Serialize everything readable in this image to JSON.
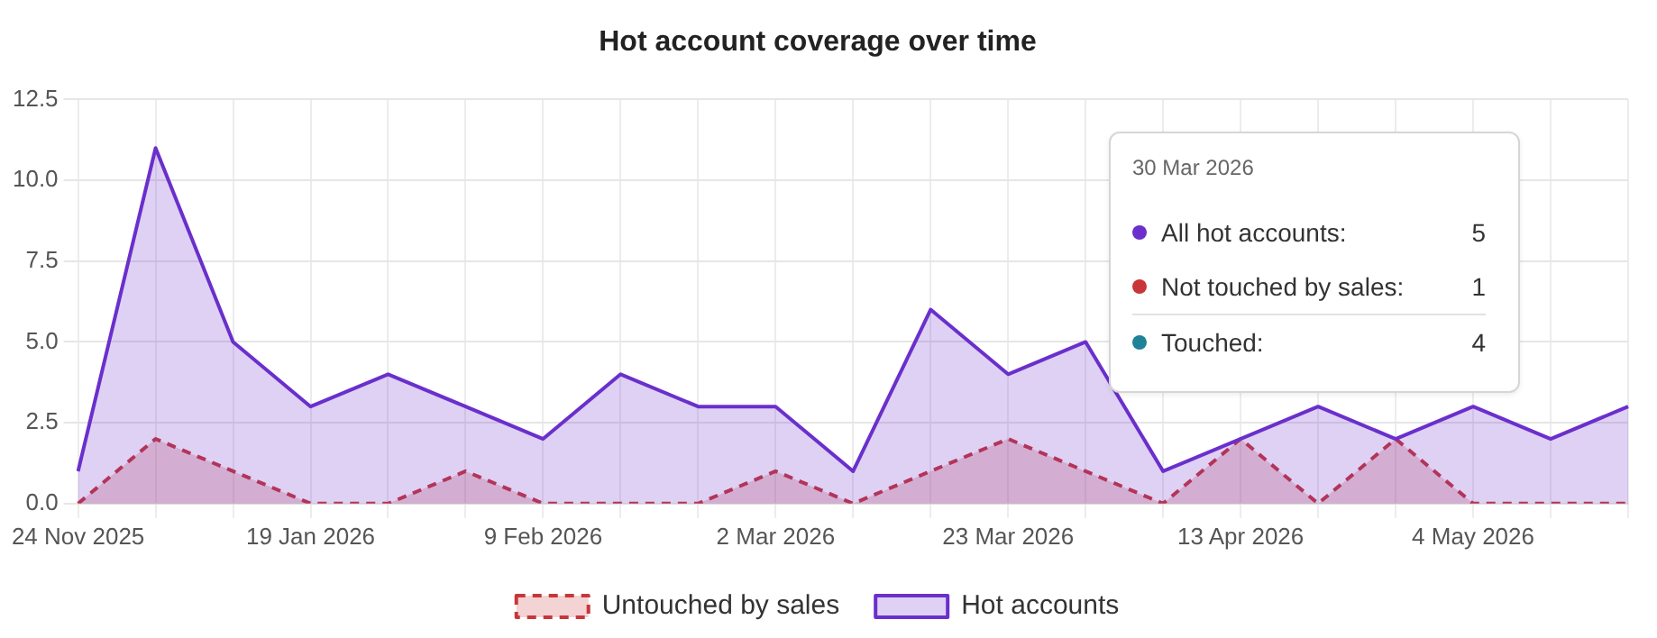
{
  "chart_data": {
    "type": "area",
    "title": "Hot account coverage over time",
    "categories": [
      "24 Nov 2025",
      null,
      null,
      "19 Jan 2026",
      null,
      null,
      "9 Feb 2026",
      null,
      null,
      "2 Mar 2026",
      null,
      null,
      "23 Mar 2026",
      null,
      null,
      "13 Apr 2026",
      null,
      null,
      "4 May 2026",
      null,
      null
    ],
    "series": [
      {
        "name": "Untouched by sales",
        "color": "#c8363a",
        "line_style": "dashed",
        "values": [
          0,
          2,
          1,
          0,
          0,
          1,
          0,
          0,
          0,
          1,
          0,
          1,
          2,
          1,
          0,
          2,
          0,
          2,
          0,
          0,
          0
        ]
      },
      {
        "name": "Hot accounts",
        "color": "#6a2fcc",
        "line_style": "solid",
        "values": [
          1,
          11,
          5,
          3,
          4,
          3,
          2,
          4,
          3,
          3,
          1,
          6,
          4,
          5,
          1,
          null,
          3,
          2,
          3,
          2,
          3
        ]
      }
    ],
    "ylim": [
      0,
      12.5
    ],
    "yticks": [
      {
        "value": 0,
        "label": "0.0"
      },
      {
        "value": 2.5,
        "label": "2.5"
      },
      {
        "value": 5,
        "label": "5.0"
      },
      {
        "value": 7.5,
        "label": "7.5"
      },
      {
        "value": 10,
        "label": "10.0"
      },
      {
        "value": 12.5,
        "label": "12.5"
      }
    ],
    "grid": true,
    "legend": "bottom",
    "marker": "none",
    "annotations": [
      "30 Mar 2026",
      "All hot accounts:",
      "5",
      "Not touched by sales:",
      "1",
      "Touched:",
      "4"
    ]
  }
}
